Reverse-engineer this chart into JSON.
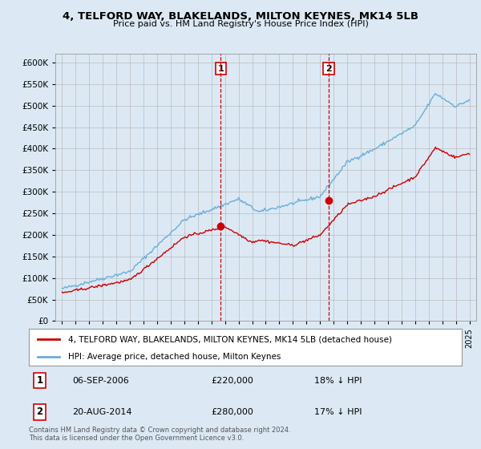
{
  "title": "4, TELFORD WAY, BLAKELANDS, MILTON KEYNES, MK14 5LB",
  "subtitle": "Price paid vs. HM Land Registry's House Price Index (HPI)",
  "background_color": "#dce9f5",
  "plot_bg_color": "#dce9f5",
  "ylim": [
    0,
    620000
  ],
  "yticks": [
    0,
    50000,
    100000,
    150000,
    200000,
    250000,
    300000,
    350000,
    400000,
    450000,
    500000,
    550000,
    600000
  ],
  "xlim_start": 1994.5,
  "xlim_end": 2025.5,
  "transaction1": {
    "year": 2006.68,
    "price": 220000,
    "label": "1",
    "date": "06-SEP-2006",
    "hpi_pct": "18% ↓ HPI"
  },
  "transaction2": {
    "year": 2014.64,
    "price": 280000,
    "label": "2",
    "date": "20-AUG-2014",
    "hpi_pct": "17% ↓ HPI"
  },
  "legend_house": "4, TELFORD WAY, BLAKELANDS, MILTON KEYNES, MK14 5LB (detached house)",
  "legend_hpi": "HPI: Average price, detached house, Milton Keynes",
  "footer": "Contains HM Land Registry data © Crown copyright and database right 2024.\nThis data is licensed under the Open Government Licence v3.0.",
  "hpi_color": "#6baed6",
  "price_color": "#cc0000",
  "vline_color": "#cc0000",
  "grid_color": "#bbbbbb"
}
